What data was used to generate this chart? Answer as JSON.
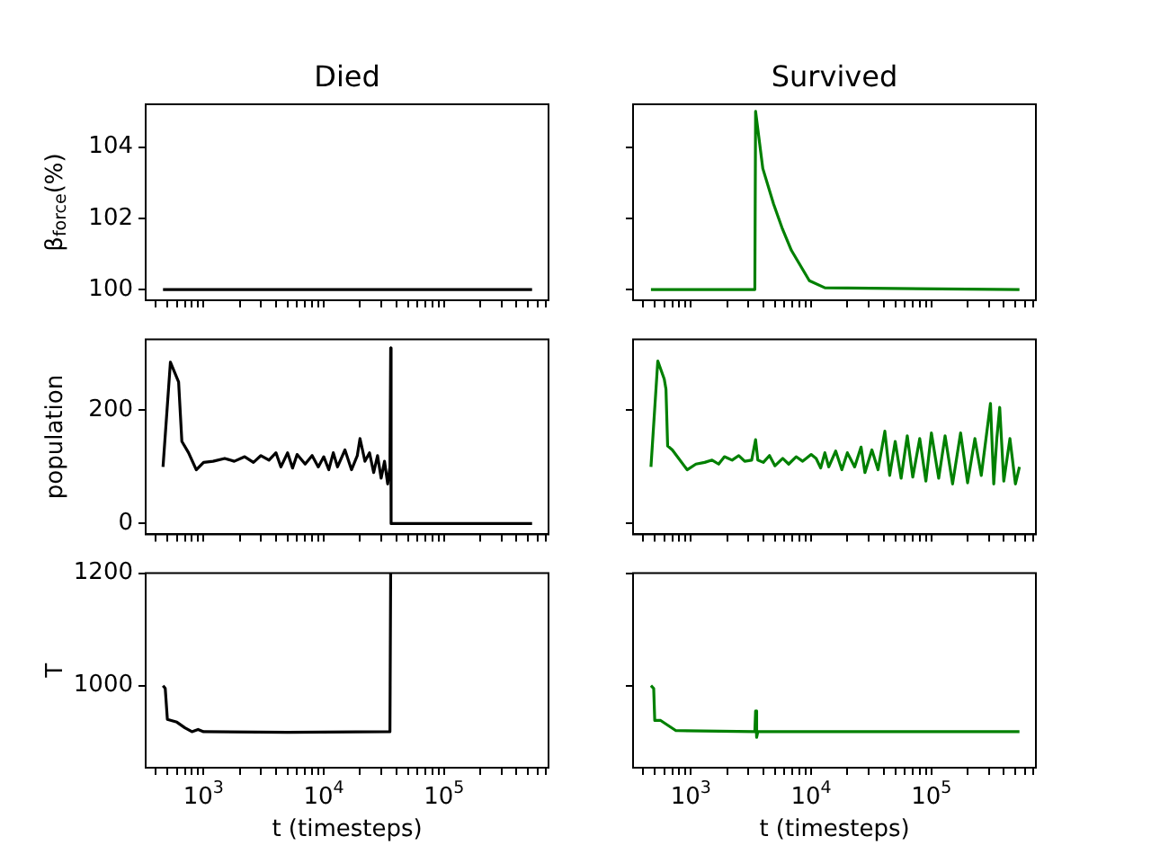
{
  "chart_data": [
    {
      "type": "line",
      "title": "Died",
      "ylabel": "β$_{force}$(%)",
      "color": "#000000",
      "log": "x",
      "tick_labels": "y",
      "x": [
        460,
        540000
      ],
      "values": [
        100,
        100
      ],
      "xlim": [
        330,
        740000
      ],
      "ylim": [
        99.7,
        105.2
      ],
      "yticks": [
        100,
        102,
        104
      ],
      "xticks": [
        {
          "value": 400,
          "label": null
        },
        {
          "value": 500,
          "label": null
        },
        {
          "value": 600,
          "label": null
        },
        {
          "value": 700,
          "label": null
        },
        {
          "value": 800,
          "label": null
        },
        {
          "value": 900,
          "label": null
        },
        {
          "value": 1000,
          "label": null
        },
        {
          "value": 2000,
          "label": null
        },
        {
          "value": 3000,
          "label": null
        },
        {
          "value": 4000,
          "label": null
        },
        {
          "value": 5000,
          "label": null
        },
        {
          "value": 6000,
          "label": null
        },
        {
          "value": 7000,
          "label": null
        },
        {
          "value": 8000,
          "label": null
        },
        {
          "value": 9000,
          "label": null
        },
        {
          "value": 10000,
          "label": null
        },
        {
          "value": 20000,
          "label": null
        },
        {
          "value": 30000,
          "label": null
        },
        {
          "value": 40000,
          "label": null
        },
        {
          "value": 50000,
          "label": null
        },
        {
          "value": 60000,
          "label": null
        },
        {
          "value": 70000,
          "label": null
        },
        {
          "value": 80000,
          "label": null
        },
        {
          "value": 90000,
          "label": null
        },
        {
          "value": 100000,
          "label": null
        },
        {
          "value": 200000,
          "label": null
        },
        {
          "value": 300000,
          "label": null
        },
        {
          "value": 400000,
          "label": null
        },
        {
          "value": 500000,
          "label": null
        },
        {
          "value": 600000,
          "label": null
        },
        {
          "value": 700000,
          "label": null
        }
      ]
    },
    {
      "type": "line",
      "title": "Survived",
      "color": "#008000",
      "log": "x",
      "tick_labels": false,
      "x": [
        465,
        3400,
        3450,
        3960,
        4870,
        5770,
        6850,
        9660,
        13000,
        540000
      ],
      "values": [
        100,
        100,
        105,
        103.4,
        102.4,
        101.7,
        101.1,
        100.25,
        100.05,
        100
      ],
      "xlim": [
        330,
        740000
      ],
      "ylim": [
        99.7,
        105.2
      ],
      "yticks": [
        {
          "value": 100,
          "label": null
        },
        {
          "value": 102,
          "label": null
        },
        {
          "value": 104,
          "label": null
        }
      ],
      "xticks": [
        {
          "value": 400,
          "label": null
        },
        {
          "value": 500,
          "label": null
        },
        {
          "value": 600,
          "label": null
        },
        {
          "value": 700,
          "label": null
        },
        {
          "value": 800,
          "label": null
        },
        {
          "value": 900,
          "label": null
        },
        {
          "value": 1000,
          "label": null
        },
        {
          "value": 2000,
          "label": null
        },
        {
          "value": 3000,
          "label": null
        },
        {
          "value": 4000,
          "label": null
        },
        {
          "value": 5000,
          "label": null
        },
        {
          "value": 6000,
          "label": null
        },
        {
          "value": 7000,
          "label": null
        },
        {
          "value": 8000,
          "label": null
        },
        {
          "value": 9000,
          "label": null
        },
        {
          "value": 10000,
          "label": null
        },
        {
          "value": 20000,
          "label": null
        },
        {
          "value": 30000,
          "label": null
        },
        {
          "value": 40000,
          "label": null
        },
        {
          "value": 50000,
          "label": null
        },
        {
          "value": 60000,
          "label": null
        },
        {
          "value": 70000,
          "label": null
        },
        {
          "value": 80000,
          "label": null
        },
        {
          "value": 90000,
          "label": null
        },
        {
          "value": 100000,
          "label": null
        },
        {
          "value": 200000,
          "label": null
        },
        {
          "value": 300000,
          "label": null
        },
        {
          "value": 400000,
          "label": null
        },
        {
          "value": 500000,
          "label": null
        },
        {
          "value": 600000,
          "label": null
        },
        {
          "value": 700000,
          "label": null
        }
      ]
    },
    {
      "type": "line",
      "ylabel": "population",
      "color": "#000000",
      "log": "x",
      "tick_labels": "y",
      "x": [
        460,
        530,
        620,
        660,
        750,
        870,
        1000,
        1200,
        1500,
        1800,
        2200,
        2600,
        3000,
        3500,
        4000,
        4400,
        5000,
        5500,
        6000,
        7000,
        8000,
        9000,
        10000,
        11000,
        12000,
        13000,
        15000,
        17000,
        19000,
        20000,
        22000,
        24000,
        26000,
        28000,
        30000,
        32000,
        34000,
        35500,
        36000,
        36300,
        540000
      ],
      "values": [
        100,
        285,
        250,
        145,
        125,
        95,
        108,
        110,
        115,
        110,
        118,
        108,
        120,
        112,
        125,
        100,
        125,
        98,
        122,
        105,
        120,
        100,
        118,
        95,
        125,
        100,
        130,
        95,
        120,
        150,
        110,
        125,
        90,
        120,
        80,
        110,
        70,
        100,
        310,
        0,
        0
      ],
      "xlim": [
        330,
        740000
      ],
      "ylim": [
        -19,
        325
      ],
      "yticks": [
        0,
        200
      ],
      "xticks": [
        {
          "value": 400,
          "label": null
        },
        {
          "value": 500,
          "label": null
        },
        {
          "value": 600,
          "label": null
        },
        {
          "value": 700,
          "label": null
        },
        {
          "value": 800,
          "label": null
        },
        {
          "value": 900,
          "label": null
        },
        {
          "value": 1000,
          "label": null
        },
        {
          "value": 2000,
          "label": null
        },
        {
          "value": 3000,
          "label": null
        },
        {
          "value": 4000,
          "label": null
        },
        {
          "value": 5000,
          "label": null
        },
        {
          "value": 6000,
          "label": null
        },
        {
          "value": 7000,
          "label": null
        },
        {
          "value": 8000,
          "label": null
        },
        {
          "value": 9000,
          "label": null
        },
        {
          "value": 10000,
          "label": null
        },
        {
          "value": 20000,
          "label": null
        },
        {
          "value": 30000,
          "label": null
        },
        {
          "value": 40000,
          "label": null
        },
        {
          "value": 50000,
          "label": null
        },
        {
          "value": 60000,
          "label": null
        },
        {
          "value": 70000,
          "label": null
        },
        {
          "value": 80000,
          "label": null
        },
        {
          "value": 90000,
          "label": null
        },
        {
          "value": 100000,
          "label": null
        },
        {
          "value": 200000,
          "label": null
        },
        {
          "value": 300000,
          "label": null
        },
        {
          "value": 400000,
          "label": null
        },
        {
          "value": 500000,
          "label": null
        },
        {
          "value": 600000,
          "label": null
        },
        {
          "value": 700000,
          "label": null
        }
      ]
    },
    {
      "type": "line",
      "color": "#008000",
      "log": "x",
      "tick_labels": false,
      "x": [
        465,
        530,
        600,
        620,
        640,
        700,
        930,
        1100,
        1300,
        1500,
        1700,
        1900,
        2200,
        2500,
        2800,
        3200,
        3450,
        3600,
        4000,
        4500,
        5000,
        5800,
        6500,
        7500,
        8500,
        10000,
        11000,
        12000,
        13000,
        14000,
        16000,
        18000,
        20000,
        23000,
        26000,
        28000,
        32000,
        36000,
        41000,
        45000,
        50000,
        56000,
        63000,
        70000,
        80000,
        90000,
        100000,
        115000,
        130000,
        150000,
        175000,
        200000,
        230000,
        260000,
        310000,
        330000,
        350000,
        370000,
        400000,
        450000,
        500000,
        540000
      ],
      "values": [
        100,
        287,
        255,
        237,
        137,
        130,
        95,
        105,
        108,
        112,
        105,
        118,
        112,
        120,
        110,
        112,
        148,
        112,
        108,
        120,
        102,
        115,
        105,
        118,
        110,
        122,
        115,
        98,
        125,
        100,
        128,
        95,
        125,
        100,
        135,
        90,
        130,
        95,
        163,
        85,
        145,
        80,
        155,
        82,
        150,
        75,
        160,
        80,
        155,
        70,
        160,
        72,
        150,
        85,
        212,
        70,
        150,
        205,
        75,
        150,
        70,
        100
      ],
      "xlim": [
        330,
        740000
      ],
      "ylim": [
        -19,
        325
      ],
      "yticks": [
        {
          "value": 0,
          "label": null
        },
        {
          "value": 200,
          "label": null
        }
      ],
      "xticks": [
        {
          "value": 400,
          "label": null
        },
        {
          "value": 500,
          "label": null
        },
        {
          "value": 600,
          "label": null
        },
        {
          "value": 700,
          "label": null
        },
        {
          "value": 800,
          "label": null
        },
        {
          "value": 900,
          "label": null
        },
        {
          "value": 1000,
          "label": null
        },
        {
          "value": 2000,
          "label": null
        },
        {
          "value": 3000,
          "label": null
        },
        {
          "value": 4000,
          "label": null
        },
        {
          "value": 5000,
          "label": null
        },
        {
          "value": 6000,
          "label": null
        },
        {
          "value": 7000,
          "label": null
        },
        {
          "value": 8000,
          "label": null
        },
        {
          "value": 9000,
          "label": null
        },
        {
          "value": 10000,
          "label": null
        },
        {
          "value": 20000,
          "label": null
        },
        {
          "value": 30000,
          "label": null
        },
        {
          "value": 40000,
          "label": null
        },
        {
          "value": 50000,
          "label": null
        },
        {
          "value": 60000,
          "label": null
        },
        {
          "value": 70000,
          "label": null
        },
        {
          "value": 80000,
          "label": null
        },
        {
          "value": 90000,
          "label": null
        },
        {
          "value": 100000,
          "label": null
        },
        {
          "value": 200000,
          "label": null
        },
        {
          "value": 300000,
          "label": null
        },
        {
          "value": 400000,
          "label": null
        },
        {
          "value": 500000,
          "label": null
        },
        {
          "value": 600000,
          "label": null
        },
        {
          "value": 700000,
          "label": null
        }
      ]
    },
    {
      "type": "line",
      "xlabel": "t (timesteps)",
      "ylabel": "T",
      "color": "#000000",
      "log": "x",
      "x": [
        460,
        480,
        500,
        600,
        700,
        800,
        900,
        1000,
        5000,
        35500,
        36000
      ],
      "values": [
        1000,
        995,
        940,
        935,
        925,
        918,
        922,
        918,
        917,
        918,
        1200
      ],
      "xlim": [
        330,
        740000
      ],
      "ylim": [
        854,
        1200
      ],
      "yticks": [
        1000,
        1200
      ],
      "xticks": [
        {
          "value": 400,
          "label": null
        },
        {
          "value": 500,
          "label": null
        },
        {
          "value": 600,
          "label": null
        },
        {
          "value": 700,
          "label": null
        },
        {
          "value": 800,
          "label": null
        },
        {
          "value": 900,
          "label": null
        },
        {
          "value": 1000,
          "label": "10$^{3}$"
        },
        {
          "value": 2000,
          "label": null
        },
        {
          "value": 3000,
          "label": null
        },
        {
          "value": 4000,
          "label": null
        },
        {
          "value": 5000,
          "label": null
        },
        {
          "value": 6000,
          "label": null
        },
        {
          "value": 7000,
          "label": null
        },
        {
          "value": 8000,
          "label": null
        },
        {
          "value": 9000,
          "label": null
        },
        {
          "value": 10000,
          "label": "10$^{4}$"
        },
        {
          "value": 20000,
          "label": null
        },
        {
          "value": 30000,
          "label": null
        },
        {
          "value": 40000,
          "label": null
        },
        {
          "value": 50000,
          "label": null
        },
        {
          "value": 60000,
          "label": null
        },
        {
          "value": 70000,
          "label": null
        },
        {
          "value": 80000,
          "label": null
        },
        {
          "value": 90000,
          "label": null
        },
        {
          "value": 100000,
          "label": "10$^{5}$"
        },
        {
          "value": 200000,
          "label": null
        },
        {
          "value": 300000,
          "label": null
        },
        {
          "value": 400000,
          "label": null
        },
        {
          "value": 500000,
          "label": null
        },
        {
          "value": 600000,
          "label": null
        },
        {
          "value": 700000,
          "label": null
        }
      ]
    },
    {
      "type": "line",
      "xlabel": "t (timesteps)",
      "color": "#008000",
      "log": "x",
      "tick_labels": "x",
      "x": [
        465,
        490,
        500,
        560,
        750,
        3400,
        3450,
        3520,
        3600,
        540000
      ],
      "values": [
        1000,
        995,
        938,
        938,
        920,
        918,
        955,
        908,
        918,
        918
      ],
      "xlim": [
        330,
        740000
      ],
      "ylim": [
        854,
        1200
      ],
      "yticks": [
        {
          "value": 1000,
          "label": null
        },
        {
          "value": 1200,
          "label": null
        }
      ],
      "xticks": [
        {
          "value": 400,
          "label": null
        },
        {
          "value": 500,
          "label": null
        },
        {
          "value": 600,
          "label": null
        },
        {
          "value": 700,
          "label": null
        },
        {
          "value": 800,
          "label": null
        },
        {
          "value": 900,
          "label": null
        },
        {
          "value": 1000,
          "label": "10$^{3}$"
        },
        {
          "value": 2000,
          "label": null
        },
        {
          "value": 3000,
          "label": null
        },
        {
          "value": 4000,
          "label": null
        },
        {
          "value": 5000,
          "label": null
        },
        {
          "value": 6000,
          "label": null
        },
        {
          "value": 7000,
          "label": null
        },
        {
          "value": 8000,
          "label": null
        },
        {
          "value": 9000,
          "label": null
        },
        {
          "value": 10000,
          "label": "10$^{4}$"
        },
        {
          "value": 20000,
          "label": null
        },
        {
          "value": 30000,
          "label": null
        },
        {
          "value": 40000,
          "label": null
        },
        {
          "value": 50000,
          "label": null
        },
        {
          "value": 60000,
          "label": null
        },
        {
          "value": 70000,
          "label": null
        },
        {
          "value": 80000,
          "label": null
        },
        {
          "value": 90000,
          "label": null
        },
        {
          "value": 100000,
          "label": "10$^{5}$"
        },
        {
          "value": 200000,
          "label": null
        },
        {
          "value": 300000,
          "label": null
        },
        {
          "value": 400000,
          "label": null
        },
        {
          "value": 500000,
          "label": null
        },
        {
          "value": 600000,
          "label": null
        },
        {
          "value": 700000,
          "label": null
        }
      ]
    }
  ]
}
